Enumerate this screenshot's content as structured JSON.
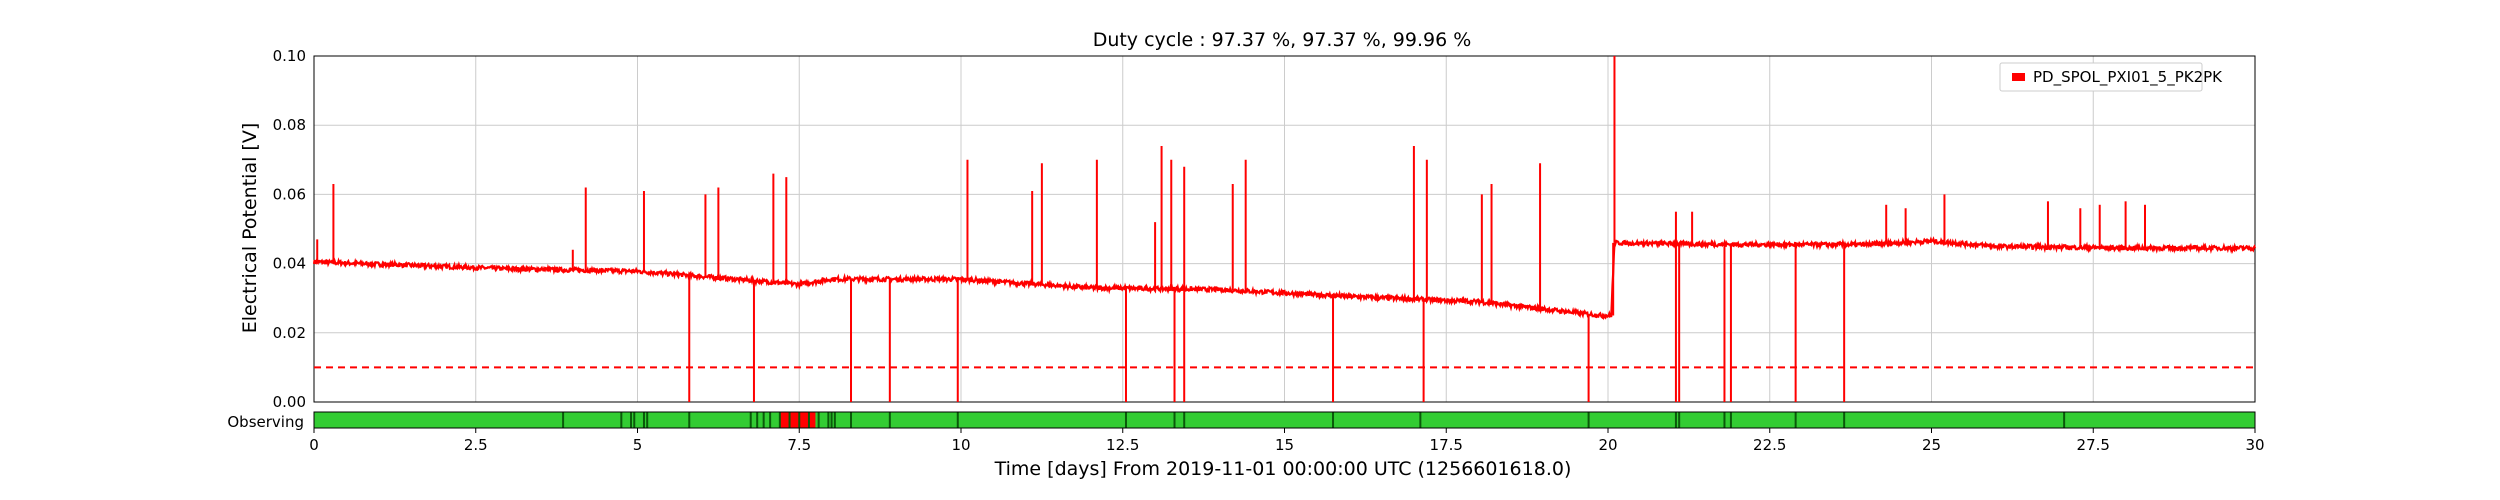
{
  "chart_data": {
    "type": "line",
    "title": "Duty cycle : 97.37 %, 97.37 %, 99.96 %",
    "xlabel": "Time [days] From 2019-11-01 00:00:00 UTC (1256601618.0)",
    "ylabel": "Electrical Potential [V]",
    "xlim": [
      0,
      30
    ],
    "ylim": [
      0,
      0.1
    ],
    "x_ticks": [
      "0",
      "2.5",
      "5",
      "7.5",
      "10",
      "12.5",
      "15",
      "17.5",
      "20",
      "22.5",
      "25",
      "27.5",
      "30"
    ],
    "y_ticks": [
      "0.00",
      "0.02",
      "0.04",
      "0.06",
      "0.08",
      "0.10"
    ],
    "grid": true,
    "legend_position": "top-right",
    "colors": {
      "series": "#ff0000",
      "threshold": "#ff0000",
      "observing": "#33cc33",
      "gap": "#0a5a0a",
      "grid": "#cccccc"
    },
    "series": [
      {
        "name": "PD_SPOL_PXI01_5_PK2PK",
        "baseline": [
          [
            0,
            0.0405
          ],
          [
            1.5,
            0.0395
          ],
          [
            3,
            0.0385
          ],
          [
            5,
            0.0378
          ],
          [
            7.5,
            0.034
          ],
          [
            8,
            0.0355
          ],
          [
            10,
            0.0355
          ],
          [
            12,
            0.033
          ],
          [
            14,
            0.0325
          ],
          [
            16,
            0.0305
          ],
          [
            18,
            0.029
          ],
          [
            19.9,
            0.025
          ],
          [
            20.05,
            0.025
          ],
          [
            20.1,
            0.046
          ],
          [
            22,
            0.0455
          ],
          [
            24,
            0.0455
          ],
          [
            25,
            0.0465
          ],
          [
            26,
            0.045
          ],
          [
            28,
            0.0445
          ],
          [
            30,
            0.0445
          ]
        ],
        "spikes_up": [
          [
            0.05,
            0.047
          ],
          [
            0.3,
            0.063
          ],
          [
            4,
            0.044
          ],
          [
            4.2,
            0.062
          ],
          [
            5.1,
            0.061
          ],
          [
            6.05,
            0.06
          ],
          [
            6.25,
            0.062
          ],
          [
            7.1,
            0.066
          ],
          [
            7.3,
            0.065
          ],
          [
            10.1,
            0.07
          ],
          [
            11.1,
            0.061
          ],
          [
            11.25,
            0.069
          ],
          [
            12.1,
            0.07
          ],
          [
            13,
            0.052
          ],
          [
            13.1,
            0.074
          ],
          [
            13.25,
            0.07
          ],
          [
            13.45,
            0.068
          ],
          [
            14.2,
            0.063
          ],
          [
            14.4,
            0.07
          ],
          [
            17,
            0.074
          ],
          [
            17.2,
            0.07
          ],
          [
            18.05,
            0.06
          ],
          [
            18.2,
            0.063
          ],
          [
            18.95,
            0.069
          ],
          [
            20.1,
            0.1
          ],
          [
            21.05,
            0.055
          ],
          [
            21.3,
            0.055
          ],
          [
            24.3,
            0.057
          ],
          [
            24.6,
            0.056
          ],
          [
            25.2,
            0.06
          ],
          [
            26.8,
            0.058
          ],
          [
            27.3,
            0.056
          ],
          [
            27.6,
            0.057
          ],
          [
            28,
            0.058
          ],
          [
            28.3,
            0.057
          ]
        ],
        "dropouts": [
          5.8,
          6.8,
          8.3,
          8.9,
          9.95,
          12.55,
          13.3,
          13.45,
          15.75,
          17.15,
          19.7,
          21.05,
          21.1,
          21.8,
          21.9,
          22.9,
          23.65
        ]
      },
      {
        "name": "threshold",
        "y": 0.01,
        "style": "dashed"
      }
    ],
    "observing": {
      "label": "Observing",
      "gaps": [
        3.85,
        4.75,
        4.9,
        4.95,
        5.1,
        5.15,
        5.8,
        6.75,
        6.85,
        6.95,
        7.05,
        7.2,
        7.35,
        7.5,
        7.65,
        7.8,
        7.95,
        8.0,
        8.05,
        8.3,
        8.9,
        9.95,
        12.55,
        13.3,
        13.45,
        15.75,
        17.1,
        19.7,
        21.05,
        21.1,
        21.8,
        21.9,
        22.9,
        23.65,
        27.05
      ],
      "red_span": [
        7.2,
        7.75
      ]
    }
  }
}
